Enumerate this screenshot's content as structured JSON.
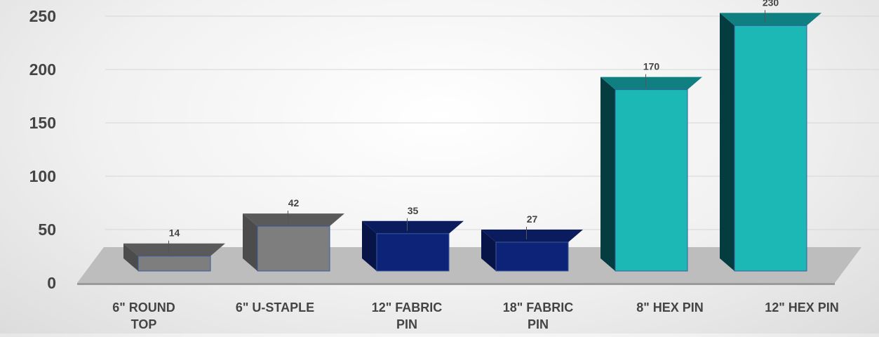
{
  "chart_data": {
    "type": "bar",
    "title": "",
    "xlabel": "",
    "ylabel": "",
    "categories": [
      [
        "6\" ROUND",
        "TOP"
      ],
      [
        "6\" U-STAPLE"
      ],
      [
        "12\" FABRIC",
        "PIN"
      ],
      [
        "18\" FABRIC",
        "PIN"
      ],
      [
        "8\" HEX PIN"
      ],
      [
        "12\" HEX PIN"
      ]
    ],
    "values": [
      14,
      42,
      35,
      27,
      170,
      230
    ],
    "ylim": [
      0,
      250
    ],
    "yticks": [
      0,
      50,
      100,
      150,
      200,
      250
    ],
    "bar_colors": [
      {
        "front": "#7e7e7e",
        "side": "#4c4c4c",
        "top": "#5a5a5a"
      },
      {
        "front": "#7e7e7e",
        "side": "#4c4c4c",
        "top": "#5a5a5a"
      },
      {
        "front": "#0d2378",
        "side": "#061447",
        "top": "#0a1b5e"
      },
      {
        "front": "#0d2378",
        "side": "#061447",
        "top": "#0a1b5e"
      },
      {
        "front": "#1cb8b5",
        "side": "#053c3f",
        "top": "#0f7f82"
      },
      {
        "front": "#1cb8b5",
        "side": "#053c3f",
        "top": "#0f7f82"
      }
    ],
    "grid": true,
    "style": "3d-bar"
  }
}
